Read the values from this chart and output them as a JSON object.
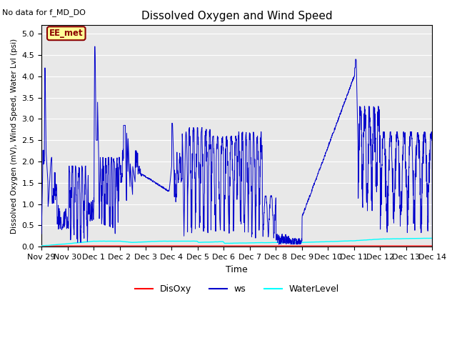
{
  "title": "Dissolved Oxygen and Wind Speed",
  "top_left_text": "No data for f_MD_DO",
  "annotation_text": "EE_met",
  "xlabel": "Time",
  "ylabel": "Dissolved Oxygen (mV), Wind Speed, Water Lvl (psi)",
  "ylim": [
    0.0,
    5.2
  ],
  "yticks": [
    0.0,
    0.5,
    1.0,
    1.5,
    2.0,
    2.5,
    3.0,
    3.5,
    4.0,
    4.5,
    5.0
  ],
  "bg_color": "#e8e8e8",
  "grid_color": "white",
  "line_colors": {
    "DisOxy": "red",
    "ws": "#0000cc",
    "WaterLevel": "cyan"
  },
  "xtick_labels": [
    "Nov 29",
    "Nov 30",
    "Dec 1",
    "Dec 2",
    "Dec 3",
    "Dec 4",
    "Dec 5",
    "Dec 6",
    "Dec 7",
    "Dec 8",
    "Dec 9",
    "Dec 10",
    "Dec 11",
    "Dec 12",
    "Dec 13",
    "Dec 14"
  ],
  "xtick_positions": [
    0,
    1,
    2,
    3,
    4,
    5,
    6,
    7,
    8,
    9,
    10,
    11,
    12,
    13,
    14,
    15
  ]
}
